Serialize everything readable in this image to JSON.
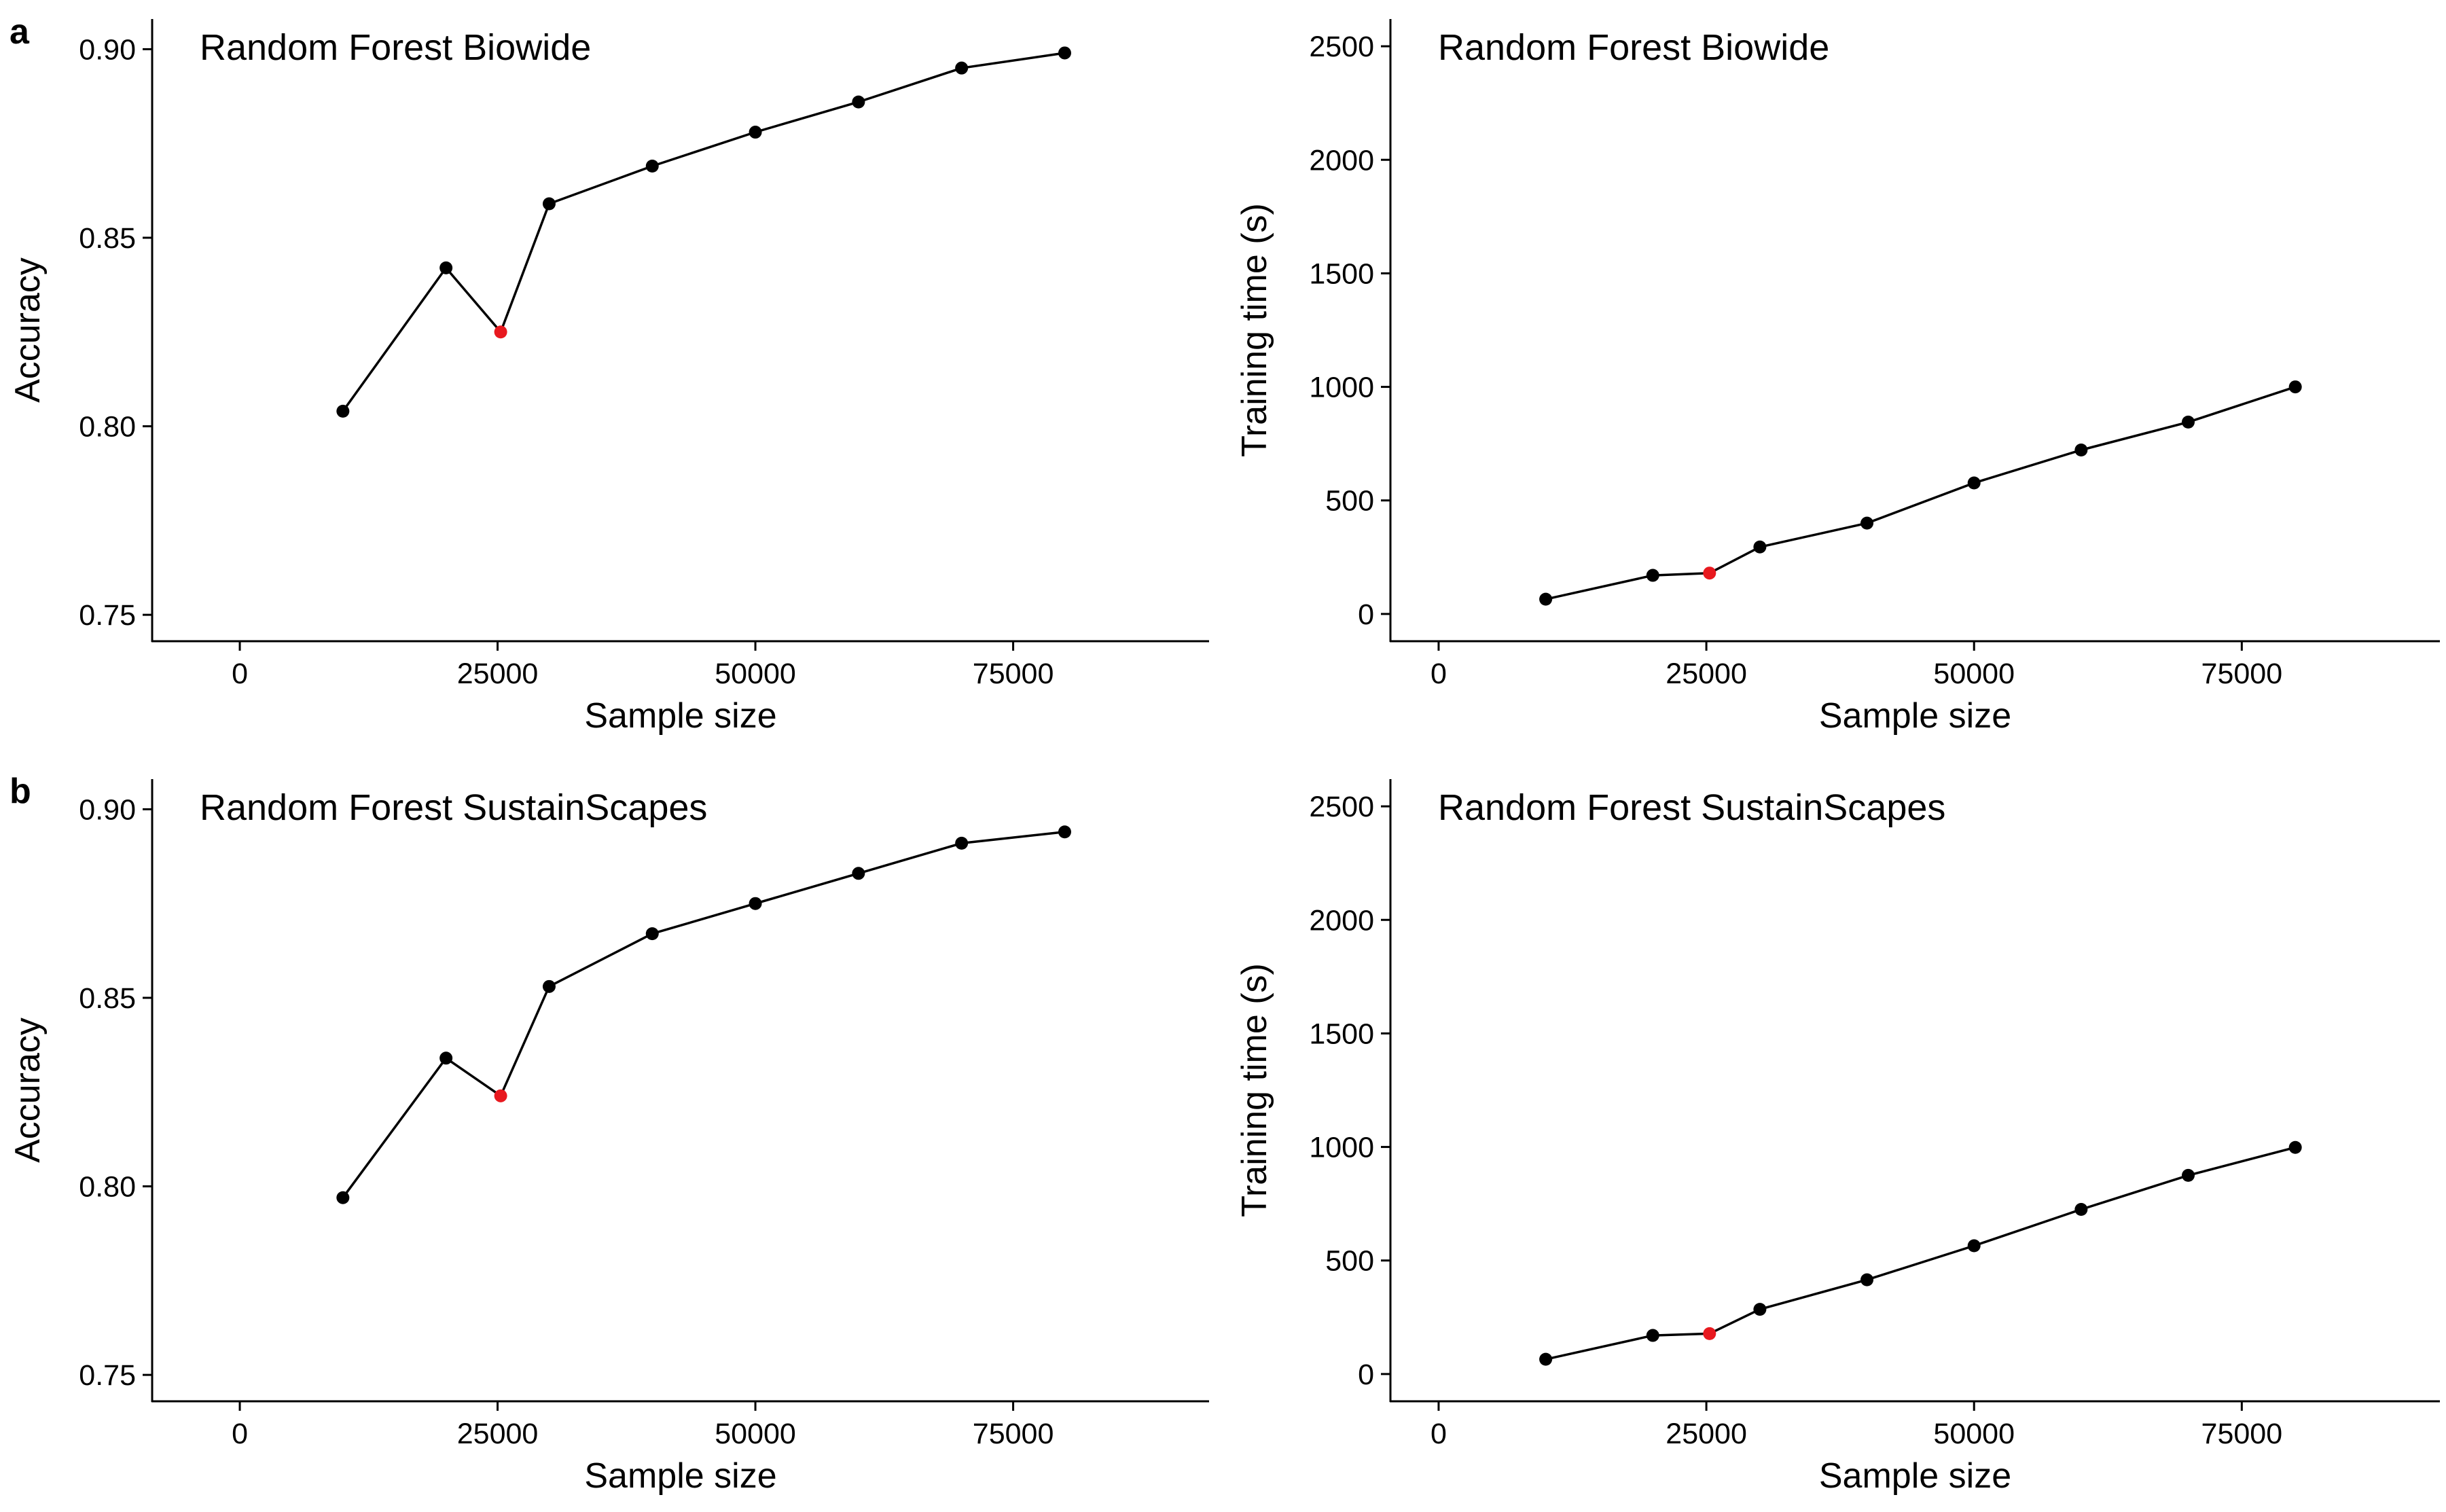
{
  "panel_letters": [
    "a",
    "b"
  ],
  "colors": {
    "line": "#000000",
    "point": "#000000",
    "highlight": "#e8191f"
  },
  "chart_data": [
    {
      "type": "line",
      "title": "Random Forest Biowide",
      "xlabel": "Sample size",
      "ylabel": "Accuracy",
      "xlim": [
        -8500,
        94000
      ],
      "ylim": [
        0.743,
        0.908
      ],
      "xticks": [
        0,
        25000,
        50000,
        75000
      ],
      "xtick_labels": [
        "0",
        "25000",
        "50000",
        "75000"
      ],
      "yticks": [
        0.75,
        0.8,
        0.85,
        0.9
      ],
      "ytick_labels": [
        "0.75",
        "0.80",
        "0.85",
        "0.90"
      ],
      "grid": false,
      "x": [
        10000,
        20000,
        25300,
        30000,
        40000,
        50000,
        60000,
        70000,
        80000
      ],
      "y": [
        0.804,
        0.842,
        0.825,
        0.859,
        0.869,
        0.878,
        0.886,
        0.895,
        0.899
      ],
      "highlight_index": 2
    },
    {
      "type": "line",
      "title": "Random Forest Biowide",
      "xlabel": "Sample size",
      "ylabel": "Training time (s)",
      "xlim": [
        -4500,
        93500
      ],
      "ylim": [
        -120,
        2620
      ],
      "xticks": [
        0,
        25000,
        50000,
        75000
      ],
      "xtick_labels": [
        "0",
        "25000",
        "50000",
        "75000"
      ],
      "yticks": [
        0,
        500,
        1000,
        1500,
        2000,
        2500
      ],
      "ytick_labels": [
        "0",
        "500",
        "1000",
        "1500",
        "2000",
        "2500"
      ],
      "grid": false,
      "x": [
        10000,
        20000,
        25300,
        30000,
        40000,
        50000,
        60000,
        70000,
        80000
      ],
      "y": [
        65,
        170,
        180,
        295,
        400,
        577,
        722,
        845,
        1000
      ],
      "highlight_index": 2
    },
    {
      "type": "line",
      "title": "Random Forest SustainScapes",
      "xlabel": "Sample size",
      "ylabel": "Accuracy",
      "xlim": [
        -8500,
        94000
      ],
      "ylim": [
        0.743,
        0.908
      ],
      "xticks": [
        0,
        25000,
        50000,
        75000
      ],
      "xtick_labels": [
        "0",
        "25000",
        "50000",
        "75000"
      ],
      "yticks": [
        0.75,
        0.8,
        0.85,
        0.9
      ],
      "ytick_labels": [
        "0.75",
        "0.80",
        "0.85",
        "0.90"
      ],
      "grid": false,
      "x": [
        10000,
        20000,
        25300,
        30000,
        40000,
        50000,
        60000,
        70000,
        80000
      ],
      "y": [
        0.797,
        0.834,
        0.824,
        0.853,
        0.867,
        0.875,
        0.883,
        0.891,
        0.894
      ],
      "highlight_index": 2
    },
    {
      "type": "line",
      "title": "Random Forest SustainScapes",
      "xlabel": "Sample size",
      "ylabel": "Training time (s)",
      "xlim": [
        -4500,
        93500
      ],
      "ylim": [
        -120,
        2620
      ],
      "xticks": [
        0,
        25000,
        50000,
        75000
      ],
      "xtick_labels": [
        "0",
        "25000",
        "50000",
        "75000"
      ],
      "yticks": [
        0,
        500,
        1000,
        1500,
        2000,
        2500
      ],
      "ytick_labels": [
        "0",
        "500",
        "1000",
        "1500",
        "2000",
        "2500"
      ],
      "grid": false,
      "x": [
        10000,
        20000,
        25300,
        30000,
        40000,
        50000,
        60000,
        70000,
        80000
      ],
      "y": [
        65,
        170,
        178,
        285,
        415,
        565,
        725,
        875,
        998
      ],
      "highlight_index": 2
    }
  ]
}
